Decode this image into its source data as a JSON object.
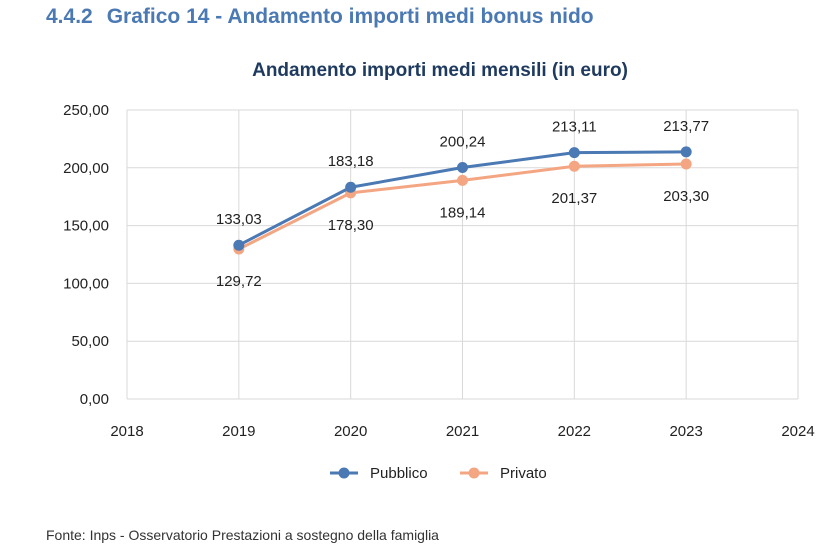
{
  "header": {
    "section_number": "4.4.2",
    "section_title": "Grafico 14 - Andamento importi medi bonus nido"
  },
  "footer": {
    "source": "Fonte: Inps - Osservatorio Prestazioni a sostegno della famiglia"
  },
  "chart_data": {
    "type": "line",
    "title": "Andamento importi medi mensili (in euro)",
    "xlabel": "",
    "ylabel": "",
    "x_ticks": [
      "2018",
      "2019",
      "2020",
      "2021",
      "2022",
      "2023",
      "2024"
    ],
    "y_ticks": [
      "0,00",
      "50,00",
      "100,00",
      "150,00",
      "200,00",
      "250,00"
    ],
    "xlim": [
      2018,
      2024
    ],
    "ylim": [
      0,
      250
    ],
    "grid": true,
    "legend": "bottom",
    "x": [
      2019,
      2020,
      2021,
      2022,
      2023
    ],
    "series": [
      {
        "name": "Pubblico",
        "color": "#4a79b3",
        "values": [
          133.03,
          183.18,
          200.24,
          213.11,
          213.77
        ],
        "labels": [
          "133,03",
          "183,18",
          "200,24",
          "213,11",
          "213,77"
        ],
        "label_position": "above"
      },
      {
        "name": "Privato",
        "color": "#f4a582",
        "values": [
          129.72,
          178.3,
          189.14,
          201.37,
          203.3
        ],
        "labels": [
          "129,72",
          "178,30",
          "189,14",
          "201,37",
          "203,30"
        ],
        "label_position": "below"
      }
    ]
  }
}
